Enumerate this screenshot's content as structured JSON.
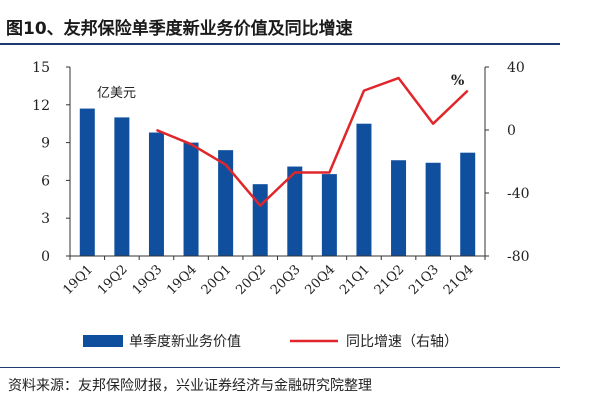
{
  "header": {
    "title": "图10、友邦保险单季度新业务价值及同比增速"
  },
  "footer": {
    "source": "资料来源：友邦保险财报，兴业证券经济与金融研究院整理"
  },
  "colors": {
    "bar": "#0f4f9e",
    "line": "#e0262b",
    "axis": "#333333",
    "rule": "#1f3a6e"
  },
  "chart_data": {
    "type": "bar",
    "categories": [
      "19Q1",
      "19Q2",
      "19Q3",
      "19Q4",
      "20Q1",
      "20Q2",
      "20Q3",
      "20Q4",
      "21Q1",
      "21Q2",
      "21Q3",
      "21Q4"
    ],
    "series": [
      {
        "name": "单季度新业务价值",
        "type": "bar",
        "axis": "left",
        "values": [
          11.7,
          11.0,
          9.8,
          9.0,
          8.4,
          5.7,
          7.1,
          6.5,
          10.5,
          7.6,
          7.4,
          8.2
        ]
      },
      {
        "name": "同比增速（右轴）",
        "type": "line",
        "axis": "right",
        "values": [
          null,
          null,
          0,
          -9,
          -22,
          -48,
          -27,
          -27,
          25,
          33,
          4,
          25
        ]
      }
    ],
    "left_axis": {
      "label": "亿美元",
      "ylim": [
        0,
        15
      ],
      "ticks": [
        "0",
        "3",
        "6",
        "9",
        "12",
        "15"
      ]
    },
    "right_axis": {
      "label": "%",
      "ylim": [
        -80,
        40
      ],
      "ticks": [
        "-80",
        "-40",
        "0",
        "40"
      ]
    },
    "legend": {
      "position": "bottom"
    },
    "grid": false
  }
}
